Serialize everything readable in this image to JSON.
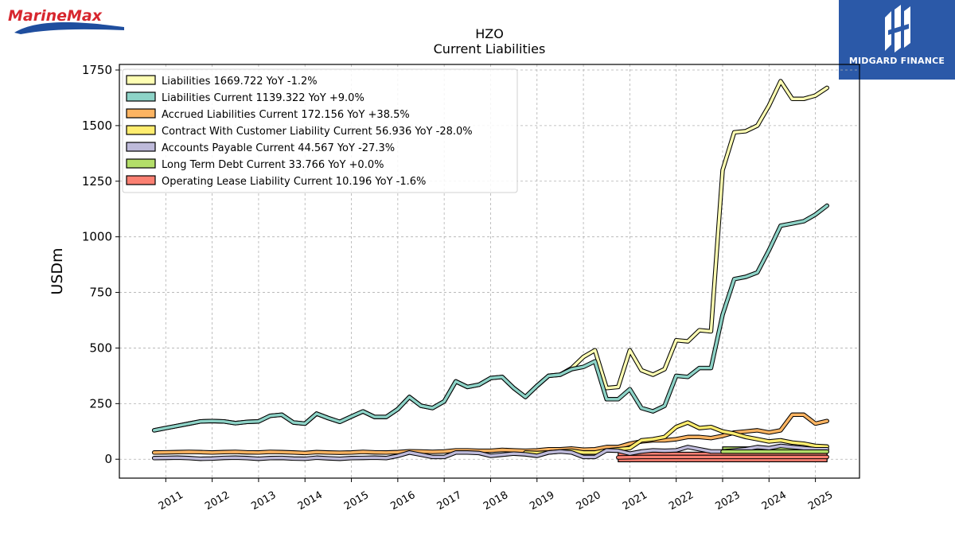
{
  "brand_left": {
    "text": "MarineMax"
  },
  "brand_right": {
    "text": "MIDGARD FINANCE"
  },
  "chart_data": {
    "type": "line",
    "title": "HZO",
    "subtitle": "Current  Liabilities",
    "ylabel": "USDm",
    "xlabel": "",
    "xlim": [
      2010.0,
      2025.95
    ],
    "ylim": [
      -85,
      1775
    ],
    "yticks": [
      0,
      250,
      500,
      750,
      1000,
      1250,
      1500,
      1750
    ],
    "xticks": [
      "2011",
      "2012",
      "2013",
      "2014",
      "2015",
      "2016",
      "2017",
      "2018",
      "2019",
      "2020",
      "2021",
      "2022",
      "2023",
      "2024",
      "2025"
    ],
    "grid": true,
    "legend_position": "top-left",
    "series": [
      {
        "name": "Liabilities  1669.722 YoY -1.2%",
        "color": "#ffffb3",
        "x": [
          2010.75,
          2011.0,
          2011.25,
          2011.5,
          2011.75,
          2012.0,
          2012.25,
          2012.5,
          2012.75,
          2013.0,
          2013.25,
          2013.5,
          2013.75,
          2014.0,
          2014.25,
          2014.5,
          2014.75,
          2015.0,
          2015.25,
          2015.5,
          2015.75,
          2016.0,
          2016.25,
          2016.5,
          2016.75,
          2017.0,
          2017.25,
          2017.5,
          2017.75,
          2018.0,
          2018.25,
          2018.5,
          2018.75,
          2019.0,
          2019.25,
          2019.5,
          2019.75,
          2020.0,
          2020.25,
          2020.5,
          2020.75,
          2021.0,
          2021.25,
          2021.5,
          2021.75,
          2022.0,
          2022.25,
          2022.5,
          2022.75,
          2023.0,
          2023.25,
          2023.5,
          2023.75,
          2024.0,
          2024.25,
          2024.5,
          2024.75,
          2025.0,
          2025.25
        ],
        "values": [
          130,
          140,
          150,
          160,
          170,
          172,
          170,
          162,
          168,
          170,
          195,
          200,
          165,
          160,
          205,
          185,
          168,
          192,
          215,
          190,
          190,
          225,
          280,
          240,
          230,
          260,
          350,
          325,
          335,
          365,
          370,
          320,
          280,
          330,
          375,
          380,
          410,
          460,
          490,
          320,
          325,
          490,
          400,
          380,
          405,
          535,
          530,
          580,
          575,
          1300,
          1470,
          1475,
          1500,
          1590,
          1700,
          1620,
          1620,
          1635,
          1670
        ]
      },
      {
        "name": "Liabilities Current  1139.322 YoY +9.0%",
        "color": "#8dd3c7",
        "x": [
          2010.75,
          2011.0,
          2011.25,
          2011.5,
          2011.75,
          2012.0,
          2012.25,
          2012.5,
          2012.75,
          2013.0,
          2013.25,
          2013.5,
          2013.75,
          2014.0,
          2014.25,
          2014.5,
          2014.75,
          2015.0,
          2015.25,
          2015.5,
          2015.75,
          2016.0,
          2016.25,
          2016.5,
          2016.75,
          2017.0,
          2017.25,
          2017.5,
          2017.75,
          2018.0,
          2018.25,
          2018.5,
          2018.75,
          2019.0,
          2019.25,
          2019.5,
          2019.75,
          2020.0,
          2020.25,
          2020.5,
          2020.75,
          2021.0,
          2021.25,
          2021.5,
          2021.75,
          2022.0,
          2022.25,
          2022.5,
          2022.75,
          2023.0,
          2023.25,
          2023.5,
          2023.75,
          2024.0,
          2024.25,
          2024.5,
          2024.75,
          2025.0,
          2025.25
        ],
        "values": [
          130,
          140,
          150,
          160,
          170,
          172,
          170,
          162,
          168,
          170,
          195,
          200,
          165,
          160,
          205,
          185,
          168,
          192,
          215,
          190,
          190,
          225,
          280,
          240,
          230,
          260,
          350,
          325,
          335,
          365,
          370,
          320,
          280,
          330,
          375,
          380,
          405,
          415,
          440,
          270,
          270,
          315,
          230,
          215,
          240,
          375,
          370,
          410,
          410,
          650,
          810,
          820,
          840,
          940,
          1050,
          1060,
          1070,
          1100,
          1140
        ]
      },
      {
        "name": "Accrued Liabilities Current  172.156 YoY +38.5%",
        "color": "#fdb462",
        "x": [
          2010.75,
          2011.0,
          2011.25,
          2011.5,
          2011.75,
          2012.0,
          2012.25,
          2012.5,
          2012.75,
          2013.0,
          2013.25,
          2013.5,
          2013.75,
          2014.0,
          2014.25,
          2014.5,
          2014.75,
          2015.0,
          2015.25,
          2015.5,
          2015.75,
          2016.0,
          2016.25,
          2016.5,
          2016.75,
          2017.0,
          2017.25,
          2017.5,
          2017.75,
          2018.0,
          2018.25,
          2018.5,
          2018.75,
          2019.0,
          2019.25,
          2019.5,
          2019.75,
          2020.0,
          2020.25,
          2020.5,
          2020.75,
          2021.0,
          2021.25,
          2021.5,
          2021.75,
          2022.0,
          2022.25,
          2022.5,
          2022.75,
          2023.0,
          2023.25,
          2023.5,
          2023.75,
          2024.0,
          2024.25,
          2024.5,
          2024.75,
          2025.0,
          2025.25
        ],
        "values": [
          30,
          31,
          32,
          33,
          32,
          30,
          32,
          33,
          31,
          30,
          33,
          32,
          30,
          28,
          32,
          30,
          29,
          30,
          33,
          31,
          30,
          32,
          36,
          35,
          33,
          35,
          40,
          40,
          38,
          38,
          42,
          40,
          38,
          40,
          45,
          45,
          48,
          43,
          45,
          55,
          55,
          70,
          80,
          85,
          85,
          90,
          100,
          100,
          95,
          105,
          120,
          125,
          130,
          120,
          130,
          200,
          200,
          160,
          172
        ]
      },
      {
        "name": "Contract With Customer Liability Current  56.936 YoY -28.0%",
        "color": "#ffed6f",
        "x": [
          2018.75,
          2019.0,
          2019.25,
          2019.5,
          2019.75,
          2020.0,
          2020.25,
          2020.5,
          2020.75,
          2021.0,
          2021.25,
          2021.5,
          2021.75,
          2022.0,
          2022.25,
          2022.5,
          2022.75,
          2023.0,
          2023.25,
          2023.5,
          2023.75,
          2024.0,
          2024.25,
          2024.5,
          2024.75,
          2025.0,
          2025.25
        ],
        "values": [
          30,
          28,
          30,
          35,
          38,
          30,
          30,
          40,
          45,
          50,
          85,
          90,
          100,
          145,
          165,
          140,
          145,
          125,
          115,
          100,
          90,
          80,
          85,
          75,
          70,
          60,
          57
        ]
      },
      {
        "name": "Accounts Payable Current  44.567 YoY -27.3%",
        "color": "#bebada",
        "x": [
          2010.75,
          2011.0,
          2011.25,
          2011.5,
          2011.75,
          2012.0,
          2012.25,
          2012.5,
          2012.75,
          2013.0,
          2013.25,
          2013.5,
          2013.75,
          2014.0,
          2014.25,
          2014.5,
          2014.75,
          2015.0,
          2015.25,
          2015.5,
          2015.75,
          2016.0,
          2016.25,
          2016.5,
          2016.75,
          2017.0,
          2017.25,
          2017.5,
          2017.75,
          2018.0,
          2018.25,
          2018.5,
          2018.75,
          2019.0,
          2019.25,
          2019.5,
          2019.75,
          2020.0,
          2020.25,
          2020.5,
          2020.75,
          2021.0,
          2021.25,
          2021.5,
          2021.75,
          2022.0,
          2022.25,
          2022.5,
          2022.75,
          2023.0,
          2023.25,
          2023.5,
          2023.75,
          2024.0,
          2024.25,
          2024.5,
          2024.75,
          2025.0,
          2025.25
        ],
        "values": [
          5,
          6,
          7,
          5,
          2,
          3,
          6,
          7,
          5,
          2,
          5,
          6,
          3,
          2,
          7,
          4,
          2,
          5,
          6,
          7,
          5,
          15,
          30,
          20,
          10,
          10,
          30,
          30,
          28,
          15,
          20,
          25,
          22,
          15,
          30,
          35,
          30,
          10,
          10,
          40,
          38,
          25,
          35,
          40,
          38,
          40,
          55,
          45,
          35,
          35,
          40,
          45,
          55,
          50,
          60,
          55,
          50,
          45,
          45
        ]
      },
      {
        "name": "Long Term Debt Current  33.766 YoY +0.0%",
        "color": "#b3de69",
        "x": [
          2023.0,
          2023.25,
          2023.5,
          2023.75,
          2024.0,
          2024.25,
          2024.5,
          2024.75,
          2025.0,
          2025.25
        ],
        "values": [
          34,
          34,
          34,
          34,
          34,
          34,
          34,
          34,
          34,
          34
        ]
      },
      {
        "name": "Operating Lease Liability Current  10.196 YoY -1.6%",
        "color": "#fb8072",
        "x": [
          2020.75,
          2021.0,
          2021.25,
          2021.5,
          2021.75,
          2022.0,
          2022.25,
          2022.5,
          2022.75,
          2023.0,
          2023.25,
          2023.5,
          2023.75,
          2024.0,
          2024.25,
          2024.5,
          2024.75,
          2025.0,
          2025.25
        ],
        "values": [
          8,
          9,
          10,
          10,
          10,
          10,
          10,
          10,
          10,
          10,
          10,
          10,
          10,
          10,
          10,
          10,
          10,
          10,
          10
        ]
      }
    ]
  }
}
